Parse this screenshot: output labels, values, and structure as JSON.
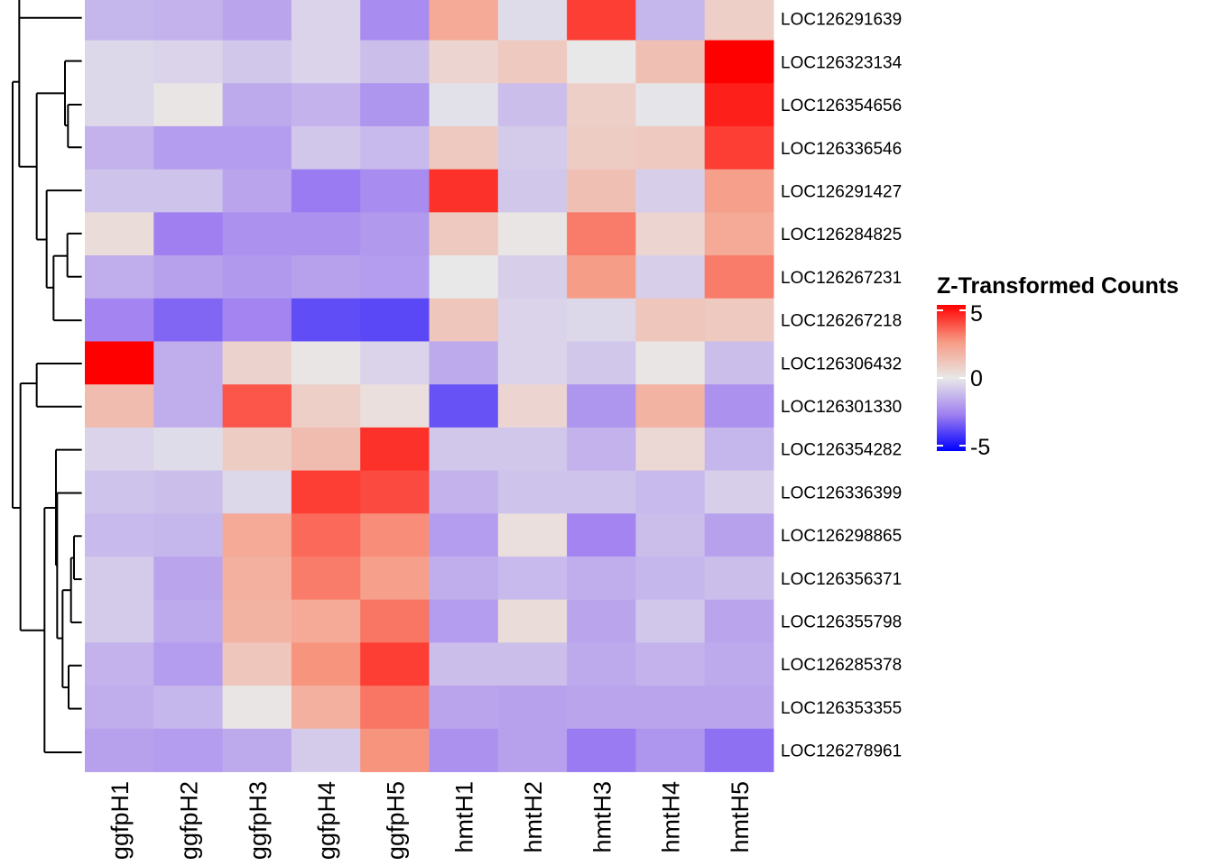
{
  "chart_data": {
    "type": "heatmap",
    "title": "",
    "legend": {
      "title": "Z-Transformed Counts",
      "ticks": [
        "5",
        "0",
        "-5"
      ],
      "range": [
        -5,
        5
      ],
      "placement": "right",
      "colors": {
        "low": "#0000FF",
        "mid": "#E8E8E8",
        "high": "#FF0000"
      }
    },
    "columns": [
      "ggfpH1",
      "ggfpH2",
      "ggfpH3",
      "ggfpH4",
      "ggfpH5",
      "hmtH1",
      "hmtH2",
      "hmtH3",
      "hmtH4",
      "hmtH5"
    ],
    "rows": [
      "LOC126291639",
      "LOC126323134",
      "LOC126354656",
      "LOC126336546",
      "LOC126291427",
      "LOC126284825",
      "LOC126267231",
      "LOC126267218",
      "LOC126306432",
      "LOC126301330",
      "LOC126354282",
      "LOC126336399",
      "LOC126298865",
      "LOC126356371",
      "LOC126355798",
      "LOC126285378",
      "LOC126353355",
      "LOC126278961"
    ],
    "values": [
      [
        -1.2,
        -1.3,
        -1.6,
        -0.5,
        -2.2,
        2.0,
        -0.3,
        4.0,
        -1.2,
        0.8
      ],
      [
        -0.4,
        -0.5,
        -0.8,
        -0.5,
        -1.0,
        0.6,
        1.0,
        0.0,
        1.3,
        5.0
      ],
      [
        -0.4,
        0.1,
        -1.5,
        -1.3,
        -2.0,
        -0.2,
        -1.0,
        0.8,
        -0.1,
        4.5
      ],
      [
        -1.3,
        -1.8,
        -1.8,
        -0.8,
        -1.1,
        1.0,
        -0.7,
        0.9,
        1.0,
        4.0
      ],
      [
        -0.9,
        -0.9,
        -1.6,
        -2.6,
        -2.2,
        4.2,
        -0.8,
        1.3,
        -0.6,
        2.3
      ],
      [
        0.4,
        -2.5,
        -2.1,
        -2.1,
        -1.9,
        1.0,
        0.1,
        3.0,
        0.6,
        2.0
      ],
      [
        -1.4,
        -1.7,
        -1.9,
        -1.7,
        -1.8,
        0.0,
        -0.6,
        2.4,
        -0.6,
        3.0
      ],
      [
        -2.4,
        -3.0,
        -2.4,
        -3.5,
        -3.6,
        1.1,
        -0.5,
        -0.4,
        1.1,
        1.0
      ],
      [
        5.0,
        -1.4,
        0.7,
        0.1,
        -0.5,
        -1.5,
        -0.5,
        -0.8,
        0.1,
        -1.0
      ],
      [
        1.4,
        -1.4,
        3.6,
        0.8,
        0.3,
        -3.4,
        0.6,
        -2.0,
        1.7,
        -2.1
      ],
      [
        -0.5,
        -0.3,
        0.9,
        1.4,
        4.2,
        -0.8,
        -0.8,
        -1.3,
        0.5,
        -1.2
      ],
      [
        -0.9,
        -1.0,
        -0.4,
        4.0,
        3.8,
        -1.3,
        -0.9,
        -0.9,
        -1.1,
        -0.6
      ],
      [
        -1.1,
        -1.2,
        2.0,
        3.3,
        2.7,
        -1.8,
        0.3,
        -2.4,
        -1.0,
        -1.7
      ],
      [
        -0.7,
        -1.6,
        1.8,
        3.0,
        2.3,
        -1.4,
        -1.1,
        -1.4,
        -1.2,
        -1.0
      ],
      [
        -0.7,
        -1.5,
        1.7,
        2.0,
        3.1,
        -1.8,
        0.4,
        -1.6,
        -0.8,
        -1.6
      ],
      [
        -1.3,
        -1.8,
        1.1,
        2.6,
        4.0,
        -1.0,
        -1.0,
        -1.5,
        -1.3,
        -1.5
      ],
      [
        -1.4,
        -1.2,
        0.1,
        1.8,
        3.1,
        -1.6,
        -1.7,
        -1.6,
        -1.6,
        -1.6
      ],
      [
        -1.7,
        -1.8,
        -1.5,
        -0.7,
        2.6,
        -2.1,
        -1.7,
        -2.6,
        -2.0,
        -2.8
      ]
    ],
    "row_dendrogram": true
  }
}
